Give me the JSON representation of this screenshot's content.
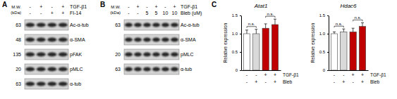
{
  "panels": [
    {
      "label": "A",
      "mw_header": [
        "M.W.",
        "(kDa)"
      ],
      "conditions": [
        {
          "name": "TGF-β1",
          "signs": [
            "-",
            "+",
            "-",
            "+"
          ]
        },
        {
          "name": "FI-14",
          "signs": [
            "-",
            "-",
            "+",
            "+"
          ]
        }
      ],
      "blots": [
        {
          "name": "Ac-α-tub",
          "mw": 63
        },
        {
          "name": "α-SMA",
          "mw": 48
        },
        {
          "name": "pFAK",
          "mw": 135
        },
        {
          "name": "pMLC",
          "mw": 20
        },
        {
          "name": "α-tub",
          "mw": 63
        }
      ]
    },
    {
      "label": "B",
      "mw_header": [
        "M.W.",
        "(kDa)"
      ],
      "conditions": [
        {
          "name": "TGF-β1",
          "signs": [
            "-",
            "+",
            "-",
            "+",
            "-",
            "+"
          ]
        },
        {
          "name": "Bleb (uM)",
          "signs": [
            "-",
            "-",
            "5",
            "5",
            "10",
            "10"
          ]
        }
      ],
      "blots": [
        {
          "name": "Ac-α-tub",
          "mw": 63
        },
        {
          "name": "α-SMA"
        },
        {
          "name": "pMLC",
          "mw": 20
        },
        {
          "name": "α-tub",
          "mw": 63
        }
      ]
    },
    {
      "label": "C"
    }
  ],
  "chart_data": [
    {
      "type": "bar",
      "title": "Atat1",
      "y_label": "Relative expression",
      "categories": [
        null,
        null,
        null,
        null
      ],
      "values": [
        1.0,
        1.0,
        1.15,
        1.25
      ],
      "errors": [
        0.1,
        0.12,
        0.12,
        0.15
      ],
      "colors": [
        "#ffffff",
        "#d9d9d9",
        "#c00000",
        "#c00000"
      ],
      "ylim": [
        0,
        1.5
      ],
      "yticks": [
        0,
        0.5,
        {
          "value": 1,
          "label": "1.0"
        },
        1.5
      ],
      "conditions": [
        {
          "name": "TGF-β1",
          "signs": [
            "-",
            "-",
            "+",
            "+"
          ]
        },
        {
          "name": "Bleb",
          "signs": [
            "-",
            "+",
            "-",
            "+"
          ]
        }
      ],
      "annotations": [
        {
          "text": "n.s.",
          "bars": [
            0,
            1
          ]
        },
        {
          "text": "n.s.",
          "bars": [
            2,
            3
          ]
        }
      ]
    },
    {
      "type": "bar",
      "title": "Hdac6",
      "y_label": "Relative expression",
      "categories": [
        null,
        null,
        null,
        null
      ],
      "values": [
        1.0,
        1.05,
        1.05,
        1.2
      ],
      "errors": [
        0.05,
        0.08,
        0.1,
        0.1
      ],
      "colors": [
        "#ffffff",
        "#d9d9d9",
        "#c00000",
        "#c00000"
      ],
      "ylim": [
        0,
        1.5
      ],
      "yticks": [
        0,
        0.5,
        {
          "value": 1,
          "label": "1.0"
        },
        1.5
      ],
      "conditions": [
        {
          "name": "TGF-β1",
          "signs": [
            "-",
            "-",
            "+",
            "+"
          ]
        },
        {
          "name": "Bleb",
          "signs": [
            "-",
            "+",
            "-",
            "+"
          ]
        }
      ],
      "annotations": [
        {
          "text": "n.s.",
          "bars": [
            0,
            1
          ]
        },
        {
          "text": "n.s.",
          "bars": [
            2,
            3
          ]
        }
      ]
    }
  ]
}
